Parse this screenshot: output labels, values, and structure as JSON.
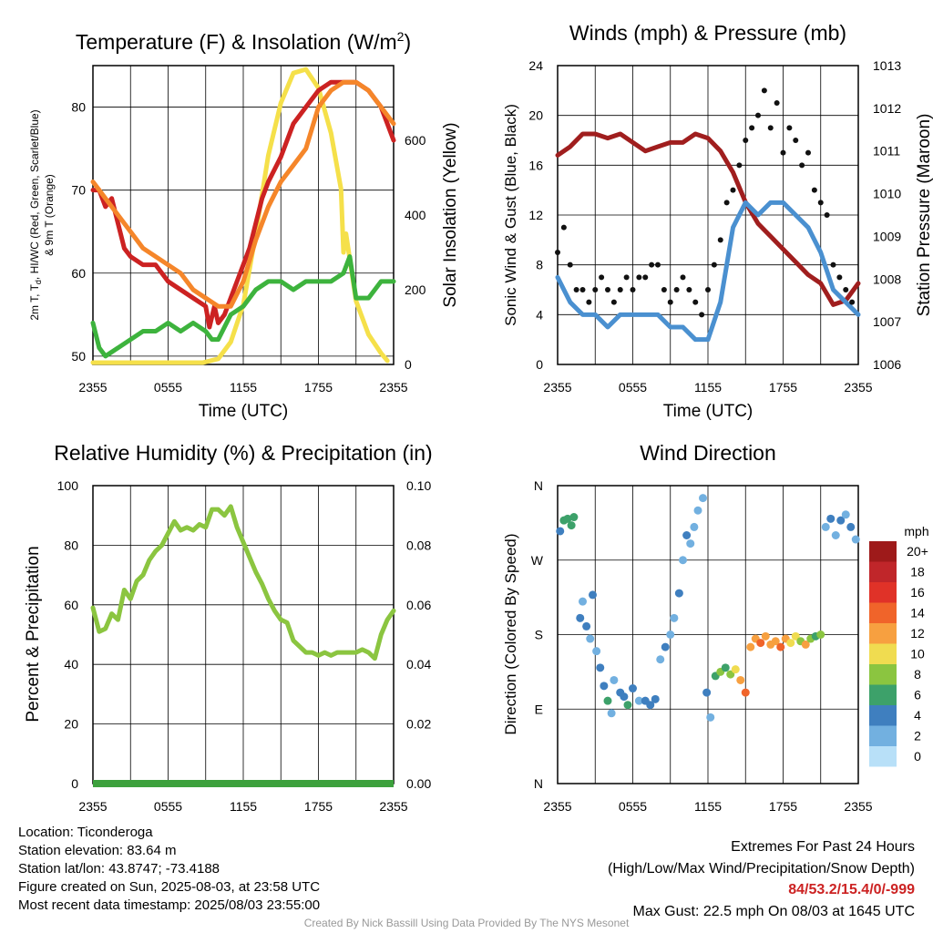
{
  "time_ticks": [
    "2355",
    "0555",
    "1155",
    "1755",
    "2355"
  ],
  "time_axis_label": "Time (UTC)",
  "footer": {
    "location": "Location: Ticonderoga",
    "elevation": "Station elevation: 83.64 m",
    "latlon": "Station lat/lon: 43.8747; -73.4188",
    "created": "Figure created on Sun, 2025-08-03, at 23:58 UTC",
    "recent": "Most recent data timestamp: 2025/08/03 23:55:00",
    "extremes_title": "Extremes For Past 24 Hours",
    "extremes_legend": "(High/Low/Max Wind/Precipitation/Snow Depth)",
    "extremes_values": "84/53.2/15.4/0/-999",
    "max_gust": "Max Gust: 22.5 mph On 08/03 at 1645 UTC",
    "credit": "Created By Nick Bassill Using Data Provided By The NYS Mesonet"
  },
  "chart_data": [
    {
      "type": "line",
      "title": "Temperature (F) & Insolation (W/m",
      "title_sup": "2",
      "title_close": ")",
      "ylabel_line1": "2m T, T",
      "ylabel_sub": "d",
      "ylabel_line1_rest": ", HI/WC (Red, Green, Scarlet/Blue)",
      "ylabel_line2": "& 9m T (Orange)",
      "y2label": "Solar Insolation (Yellow)",
      "x_hours": [
        0,
        24
      ],
      "ylim": [
        49,
        85
      ],
      "y_ticks": [
        "50",
        "60",
        "70",
        "80"
      ],
      "y2lim": [
        0,
        800
      ],
      "y2_ticks": [
        "0",
        "200",
        "400",
        "600"
      ],
      "series": [
        {
          "color": "#f5e04a",
          "axis": "y2",
          "x": [
            0,
            3,
            6,
            8.8,
            10,
            11,
            12,
            13,
            14,
            15,
            16,
            17,
            17.6,
            18,
            19,
            19.8,
            20,
            20.2,
            21,
            22,
            23,
            23.5
          ],
          "values": [
            5,
            5,
            5,
            5,
            15,
            60,
            160,
            350,
            560,
            700,
            780,
            790,
            760,
            740,
            620,
            470,
            300,
            350,
            170,
            80,
            30,
            10
          ]
        },
        {
          "color": "#cc2222",
          "axis": "y",
          "x": [
            0,
            0.5,
            1,
            1.5,
            2,
            2.5,
            3,
            4,
            5,
            6,
            7,
            8,
            9,
            9.3,
            9.7,
            10,
            10.5,
            11,
            11.5,
            12,
            12.5,
            13,
            13.5,
            14,
            15,
            16,
            17,
            18,
            19,
            20,
            21,
            22,
            23,
            24
          ],
          "values": [
            70,
            70,
            68,
            69,
            66,
            63,
            62,
            61,
            61,
            59,
            58,
            57,
            56,
            53.5,
            56,
            54,
            55,
            57,
            59,
            61,
            63,
            66,
            69,
            71,
            74,
            78,
            80,
            82,
            83,
            83,
            83,
            82,
            80,
            76
          ]
        },
        {
          "color": "#f5862a",
          "axis": "y",
          "x": [
            0,
            1,
            2,
            3,
            4,
            5,
            6,
            7,
            8,
            9,
            10,
            11,
            12,
            13,
            14,
            15,
            16,
            17,
            18,
            19,
            20,
            21,
            22,
            23,
            24
          ],
          "values": [
            71,
            69,
            67,
            65,
            63,
            62,
            61,
            60,
            58,
            57,
            56,
            56,
            59,
            64,
            68,
            71,
            73,
            75,
            80,
            82,
            83,
            83,
            82,
            80,
            78
          ]
        },
        {
          "color": "#3db33d",
          "axis": "y",
          "x": [
            0,
            0.5,
            1,
            2,
            3,
            4,
            5,
            6,
            7,
            8,
            9,
            9.5,
            10,
            11,
            12,
            13,
            14,
            15,
            16,
            17,
            18,
            19,
            20,
            20.5,
            21,
            22,
            23,
            24
          ],
          "values": [
            54,
            51,
            50,
            51,
            52,
            53,
            53,
            54,
            53,
            54,
            53,
            52,
            52,
            55,
            56,
            58,
            59,
            59,
            58,
            59,
            59,
            59,
            60,
            62,
            57,
            57,
            59,
            59
          ]
        }
      ]
    },
    {
      "type": "line",
      "title": "Winds (mph) & Pressure (mb)",
      "ylabel": "Sonic Wind & Gust (Blue, Black)",
      "y2label": "Station Pressure (Maroon)",
      "x_hours": [
        0,
        24
      ],
      "ylim": [
        0,
        24
      ],
      "y_ticks": [
        "0",
        "4",
        "8",
        "12",
        "16",
        "20",
        "24"
      ],
      "y2lim": [
        1006,
        1013
      ],
      "y2_ticks": [
        "1006",
        "1007",
        "1008",
        "1009",
        "1010",
        "1011",
        "1012",
        "1013"
      ],
      "series": [
        {
          "color": "#a01e1e",
          "axis": "y2",
          "x": [
            0,
            1,
            2,
            3,
            4,
            5,
            6,
            7,
            8,
            9,
            10,
            11,
            12,
            13,
            14,
            15,
            16,
            17,
            18,
            19,
            20,
            21,
            22,
            23,
            24
          ],
          "values": [
            1010.9,
            1011.1,
            1011.4,
            1011.4,
            1011.3,
            1011.4,
            1011.2,
            1011.0,
            1011.1,
            1011.2,
            1011.2,
            1011.4,
            1011.3,
            1011.0,
            1010.5,
            1009.8,
            1009.3,
            1009.0,
            1008.7,
            1008.4,
            1008.1,
            1007.9,
            1007.4,
            1007.5,
            1007.9
          ]
        },
        {
          "color": "#4a90d0",
          "axis": "y",
          "x": [
            0,
            1,
            2,
            3,
            4,
            5,
            6,
            7,
            8,
            9,
            10,
            11,
            12,
            13,
            14,
            15,
            16,
            17,
            18,
            19,
            20,
            21,
            22,
            23,
            24
          ],
          "values": [
            7,
            5,
            4,
            4,
            3,
            4,
            4,
            4,
            4,
            3,
            3,
            2,
            2,
            5,
            11,
            13,
            12,
            13,
            13,
            12,
            11,
            9,
            6,
            5,
            4
          ]
        },
        {
          "color": "#111111",
          "axis": "y",
          "kind": "dots",
          "x": [
            0,
            0.5,
            1,
            1.5,
            2,
            2.5,
            3,
            3.5,
            4,
            4.5,
            5,
            5.5,
            6,
            6.5,
            7,
            7.5,
            8,
            8.5,
            9,
            9.5,
            10,
            10.5,
            11,
            11.5,
            12,
            12.5,
            13,
            13.5,
            14,
            14.5,
            15,
            15.5,
            16,
            16.5,
            17,
            17.5,
            18,
            18.5,
            19,
            19.5,
            20,
            20.5,
            21,
            21.5,
            22,
            22.5,
            23,
            23.5
          ],
          "values": [
            9,
            11,
            8,
            6,
            6,
            5,
            6,
            7,
            6,
            5,
            6,
            7,
            6,
            7,
            7,
            8,
            8,
            6,
            5,
            6,
            7,
            6,
            5,
            4,
            6,
            8,
            10,
            13,
            14,
            16,
            18,
            19,
            20,
            22,
            19,
            21,
            17,
            19,
            18,
            16,
            17,
            14,
            13,
            12,
            8,
            7,
            6,
            5
          ]
        }
      ]
    },
    {
      "type": "line",
      "title": "Relative Humidity (%) & Precipitation (in)",
      "ylabel": "Percent & Precipitation",
      "x_hours": [
        0,
        24
      ],
      "ylim": [
        0,
        100
      ],
      "y_ticks": [
        "0",
        "20",
        "40",
        "60",
        "80",
        "100"
      ],
      "y2lim": [
        0,
        0.1
      ],
      "y2_ticks": [
        "0.00",
        "0.02",
        "0.04",
        "0.06",
        "0.08",
        "0.10"
      ],
      "series": [
        {
          "color": "#8bc540",
          "axis": "y",
          "x": [
            0,
            0.5,
            1,
            1.5,
            2,
            2.5,
            3,
            3.5,
            4,
            4.5,
            5,
            5.5,
            6,
            6.5,
            7,
            7.5,
            8,
            8.5,
            9,
            9.5,
            10,
            10.5,
            11,
            11.5,
            12,
            12.5,
            13,
            13.5,
            14,
            14.5,
            15,
            15.5,
            16,
            16.5,
            17,
            17.5,
            18,
            18.5,
            19,
            19.5,
            20,
            20.5,
            21,
            21.5,
            22,
            22.5,
            23,
            23.5,
            24
          ],
          "values": [
            59,
            51,
            52,
            57,
            55,
            65,
            62,
            68,
            70,
            75,
            78,
            80,
            84,
            88,
            85,
            86,
            85,
            87,
            86,
            92,
            92,
            90,
            93,
            86,
            81,
            76,
            71,
            67,
            62,
            58,
            55,
            54,
            48,
            46,
            44,
            44,
            43,
            44,
            43,
            44,
            44,
            44,
            44,
            45,
            44,
            42,
            50,
            55,
            58
          ]
        },
        {
          "color": "#3da13d",
          "axis": "y2",
          "x": [
            0,
            24
          ],
          "values": [
            0,
            0
          ]
        }
      ]
    },
    {
      "type": "scatter",
      "title": "Wind Direction",
      "ylabel": "Direction (Colored By Speed)",
      "x_hours": [
        0,
        24
      ],
      "y_ticks": [
        "N",
        "E",
        "S",
        "W",
        "N"
      ],
      "ylim": [
        0,
        360
      ],
      "colorbar_title": "mph",
      "colorbar_labels": [
        "20+",
        "18",
        "16",
        "14",
        "12",
        "10",
        "8",
        "6",
        "4",
        "2",
        "0"
      ],
      "colorbar_colors": [
        "#9e1a1a",
        "#c0262a",
        "#e03228",
        "#f0642a",
        "#f7a040",
        "#f0dc50",
        "#8bc540",
        "#3da16a",
        "#3f7fbf",
        "#72b0e0",
        "#b8e0f8"
      ],
      "points": [
        {
          "x": 0.2,
          "y": 305,
          "s": 5
        },
        {
          "x": 0.5,
          "y": 318,
          "s": 6
        },
        {
          "x": 0.8,
          "y": 320,
          "s": 6
        },
        {
          "x": 1.1,
          "y": 312,
          "s": 7
        },
        {
          "x": 1.3,
          "y": 322,
          "s": 6
        },
        {
          "x": 1.8,
          "y": 200,
          "s": 4
        },
        {
          "x": 2.0,
          "y": 220,
          "s": 3
        },
        {
          "x": 2.3,
          "y": 190,
          "s": 4
        },
        {
          "x": 2.6,
          "y": 175,
          "s": 3
        },
        {
          "x": 2.8,
          "y": 228,
          "s": 4
        },
        {
          "x": 3.1,
          "y": 160,
          "s": 3
        },
        {
          "x": 3.4,
          "y": 140,
          "s": 4
        },
        {
          "x": 3.7,
          "y": 118,
          "s": 5
        },
        {
          "x": 4.0,
          "y": 100,
          "s": 6
        },
        {
          "x": 4.3,
          "y": 85,
          "s": 3
        },
        {
          "x": 4.5,
          "y": 125,
          "s": 3
        },
        {
          "x": 5.0,
          "y": 110,
          "s": 4
        },
        {
          "x": 5.3,
          "y": 105,
          "s": 4
        },
        {
          "x": 5.6,
          "y": 95,
          "s": 6
        },
        {
          "x": 6.0,
          "y": 115,
          "s": 4
        },
        {
          "x": 6.5,
          "y": 100,
          "s": 3
        },
        {
          "x": 7.0,
          "y": 100,
          "s": 4
        },
        {
          "x": 7.4,
          "y": 95,
          "s": 5
        },
        {
          "x": 7.8,
          "y": 102,
          "s": 4
        },
        {
          "x": 8.2,
          "y": 150,
          "s": 3
        },
        {
          "x": 8.6,
          "y": 165,
          "s": 4
        },
        {
          "x": 9.0,
          "y": 180,
          "s": 3
        },
        {
          "x": 9.3,
          "y": 200,
          "s": 3
        },
        {
          "x": 9.7,
          "y": 230,
          "s": 4
        },
        {
          "x": 10.0,
          "y": 270,
          "s": 2
        },
        {
          "x": 10.3,
          "y": 300,
          "s": 4
        },
        {
          "x": 10.6,
          "y": 290,
          "s": 3
        },
        {
          "x": 10.9,
          "y": 310,
          "s": 2
        },
        {
          "x": 11.2,
          "y": 330,
          "s": 2
        },
        {
          "x": 11.6,
          "y": 345,
          "s": 2
        },
        {
          "x": 11.9,
          "y": 110,
          "s": 4
        },
        {
          "x": 12.2,
          "y": 80,
          "s": 3
        },
        {
          "x": 12.6,
          "y": 130,
          "s": 7
        },
        {
          "x": 13.0,
          "y": 135,
          "s": 8
        },
        {
          "x": 13.4,
          "y": 140,
          "s": 6
        },
        {
          "x": 13.8,
          "y": 132,
          "s": 9
        },
        {
          "x": 14.2,
          "y": 138,
          "s": 10
        },
        {
          "x": 14.6,
          "y": 125,
          "s": 12
        },
        {
          "x": 15.0,
          "y": 110,
          "s": 14
        },
        {
          "x": 15.4,
          "y": 165,
          "s": 13
        },
        {
          "x": 15.8,
          "y": 175,
          "s": 12
        },
        {
          "x": 16.2,
          "y": 170,
          "s": 14
        },
        {
          "x": 16.6,
          "y": 178,
          "s": 12
        },
        {
          "x": 17.0,
          "y": 168,
          "s": 13
        },
        {
          "x": 17.4,
          "y": 172,
          "s": 12
        },
        {
          "x": 17.8,
          "y": 165,
          "s": 14
        },
        {
          "x": 18.2,
          "y": 175,
          "s": 12
        },
        {
          "x": 18.6,
          "y": 170,
          "s": 11
        },
        {
          "x": 19.0,
          "y": 178,
          "s": 10
        },
        {
          "x": 19.4,
          "y": 172,
          "s": 9
        },
        {
          "x": 19.8,
          "y": 168,
          "s": 12
        },
        {
          "x": 20.2,
          "y": 175,
          "s": 8
        },
        {
          "x": 20.6,
          "y": 178,
          "s": 7
        },
        {
          "x": 21.0,
          "y": 180,
          "s": 8
        },
        {
          "x": 21.4,
          "y": 310,
          "s": 3
        },
        {
          "x": 21.8,
          "y": 320,
          "s": 4
        },
        {
          "x": 22.2,
          "y": 300,
          "s": 3
        },
        {
          "x": 22.6,
          "y": 318,
          "s": 4
        },
        {
          "x": 23.0,
          "y": 325,
          "s": 3
        },
        {
          "x": 23.4,
          "y": 310,
          "s": 4
        },
        {
          "x": 23.8,
          "y": 295,
          "s": 3
        }
      ]
    }
  ]
}
